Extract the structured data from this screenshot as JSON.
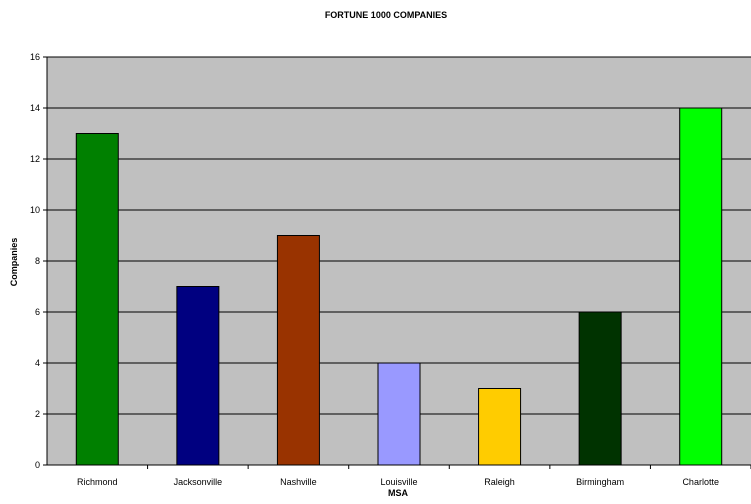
{
  "chart_data": {
    "type": "bar",
    "title": "FORTUNE 1000 COMPANIES",
    "xlabel": "MSA",
    "ylabel": "Companies",
    "categories": [
      "Richmond",
      "Jacksonville",
      "Nashville",
      "Louisville",
      "Raleigh",
      "Birmingham",
      "Charlotte"
    ],
    "values": [
      13,
      7,
      9,
      4,
      3,
      6,
      14
    ],
    "colors": [
      "#008000",
      "#000080",
      "#993300",
      "#9999FF",
      "#FFCC00",
      "#003300",
      "#00FF00"
    ],
    "ylim": [
      0,
      16
    ],
    "yticks": [
      0,
      2,
      4,
      6,
      8,
      10,
      12,
      14,
      16
    ],
    "grid": true,
    "plot_background": "#C0C0C0",
    "legend": "none"
  }
}
